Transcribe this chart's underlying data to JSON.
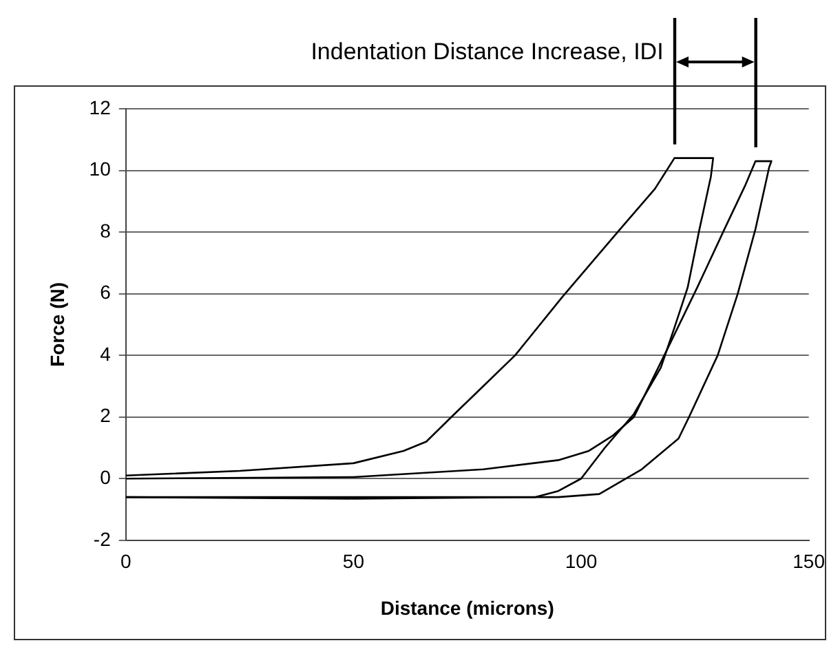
{
  "chart_data": {
    "type": "line",
    "xlabel": "Distance (microns)",
    "ylabel": "Force (N)",
    "annotations": [
      "Indentation Distance Increase, IDI"
    ],
    "xlim": [
      0,
      150
    ],
    "xticks": [
      0,
      50,
      100,
      150
    ],
    "ylim": [
      -2,
      12
    ],
    "yticks": [
      -2,
      0,
      2,
      4,
      6,
      8,
      10,
      12
    ],
    "grid": "y",
    "legend": false,
    "marker": "none",
    "line_style": "solid",
    "series": [
      {
        "color": "#000000",
        "x": [
          0,
          25,
          50,
          61,
          66,
          71.5,
          78.5,
          85.5,
          95.9,
          108.6,
          116.2,
          120.5,
          129,
          128.5,
          126,
          123.4,
          120.5,
          117.5,
          111.6,
          105.2,
          100,
          95,
          90,
          50,
          0
        ],
        "values": [
          0.1,
          0.25,
          0.5,
          0.9,
          1.2,
          2.0,
          3.0,
          4.0,
          5.9,
          8.1,
          9.4,
          10.4,
          10.4,
          9.8,
          8.1,
          6.2,
          4.9,
          3.6,
          2.1,
          1.0,
          0,
          -0.4,
          -0.6,
          -0.65,
          -0.6
        ]
      },
      {
        "color": "#000000",
        "x": [
          0,
          50,
          78.5,
          95,
          101.7,
          107,
          111.6,
          118.6,
          125.5,
          131.5,
          136,
          138.3,
          141.8,
          141.3,
          138.3,
          134.4,
          130,
          123.7,
          121.4,
          113.3,
          104,
          95,
          0
        ],
        "values": [
          0,
          0.05,
          0.3,
          0.6,
          0.9,
          1.4,
          2.0,
          4.1,
          6.2,
          8.1,
          9.5,
          10.3,
          10.3,
          10.1,
          8.1,
          6.0,
          4.0,
          2.0,
          1.3,
          0.3,
          -0.5,
          -0.6,
          -0.6
        ]
      }
    ]
  }
}
